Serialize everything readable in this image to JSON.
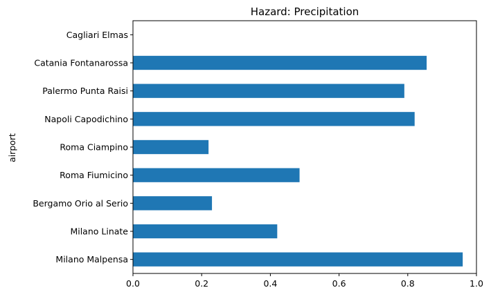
{
  "chart_data": {
    "type": "bar",
    "orientation": "horizontal",
    "title": "Hazard: Precipitation",
    "xlabel": "",
    "ylabel": "airport",
    "xlim": [
      0,
      1.0
    ],
    "x_ticks": [
      "0.0",
      "0.2",
      "0.4",
      "0.6",
      "0.8",
      "1.0"
    ],
    "categories": [
      "Milano Malpensa",
      "Milano Linate",
      "Bergamo Orio al Serio",
      "Roma Fiumicino",
      "Roma Ciampino",
      "Napoli Capodichino",
      "Palermo Punta Raisi",
      "Catania Fontanarossa",
      "Cagliari Elmas"
    ],
    "values": [
      0.96,
      0.42,
      0.23,
      0.485,
      0.22,
      0.82,
      0.79,
      0.855,
      0.0
    ],
    "bar_color": "#1f77b4",
    "grid": false,
    "legend": false
  }
}
